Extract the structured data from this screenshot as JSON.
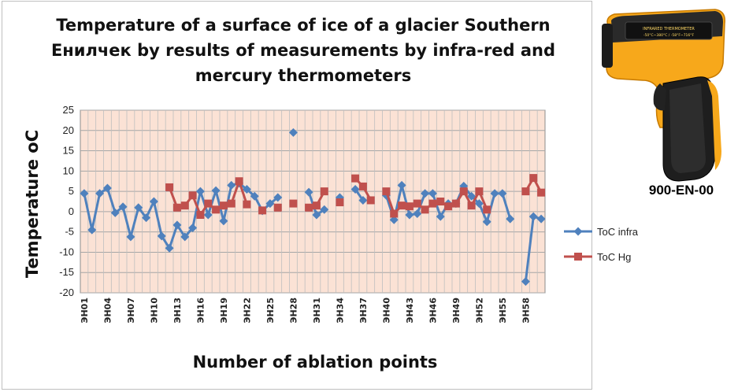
{
  "chart_data": {
    "type": "line",
    "title": "Temperature of a surface of ice of a glacier Southern Енилчек by results of measurements by infra-red and mercury thermometers",
    "xlabel": "Number of ablation points",
    "ylabel": "Temperature oC",
    "ylim": [
      -20,
      25
    ],
    "ytick_step": 5,
    "grid": true,
    "legend_position": "right",
    "x_count": 60,
    "tick_labels": [
      "ЭН01",
      "ЭН04",
      "ЭН07",
      "ЭН10",
      "ЭН13",
      "ЭН16",
      "ЭН19",
      "ЭН22",
      "ЭН25",
      "ЭН28",
      "ЭН31",
      "ЭН34",
      "ЭН37",
      "ЭН40",
      "ЭН43",
      "ЭН46",
      "ЭН49",
      "ЭН52",
      "ЭН55",
      "ЭН58"
    ],
    "tick_positions": [
      1,
      4,
      7,
      10,
      13,
      16,
      19,
      22,
      25,
      28,
      31,
      34,
      37,
      40,
      43,
      46,
      49,
      52,
      55,
      58
    ],
    "series": [
      {
        "name": "ToC infra",
        "color": "#4f81bd",
        "marker": "diamond",
        "values": [
          4.5,
          -4.5,
          4.5,
          5.8,
          -0.3,
          1.2,
          -6.2,
          1.0,
          -1.5,
          2.5,
          -6.0,
          -9.0,
          -3.3,
          -6.2,
          -4.0,
          5.0,
          -0.8,
          5.2,
          -2.3,
          6.5,
          7.0,
          5.5,
          3.8,
          0.2,
          2.0,
          3.5,
          null,
          19.5,
          null,
          4.8,
          -0.8,
          0.5,
          null,
          3.5,
          null,
          5.5,
          2.8,
          null,
          null,
          4.0,
          -2.0,
          6.5,
          -0.8,
          -0.5,
          4.5,
          4.5,
          -1.2,
          2.0,
          2.0,
          6.3,
          3.8,
          2.0,
          -2.5,
          4.5,
          4.5,
          -1.8,
          null,
          -17.2,
          -1.2,
          -1.8
        ]
      },
      {
        "name": "ToC Hg",
        "color": "#c0504d",
        "marker": "square",
        "values": [
          null,
          null,
          null,
          null,
          null,
          null,
          null,
          null,
          null,
          null,
          null,
          6.0,
          1.0,
          1.5,
          4.0,
          -0.8,
          2.0,
          0.5,
          1.5,
          2.0,
          7.5,
          1.8,
          null,
          0.3,
          null,
          1.0,
          null,
          2.0,
          null,
          1.0,
          1.5,
          5.0,
          null,
          2.3,
          null,
          8.2,
          6.2,
          2.8,
          null,
          5.0,
          -0.5,
          1.5,
          1.3,
          2.0,
          0.5,
          2.0,
          2.5,
          1.3,
          2.0,
          5.0,
          1.5,
          5.0,
          0.5,
          null,
          null,
          null,
          null,
          5.0,
          8.3,
          4.7
        ]
      }
    ]
  },
  "device_label": "900-EN-00"
}
